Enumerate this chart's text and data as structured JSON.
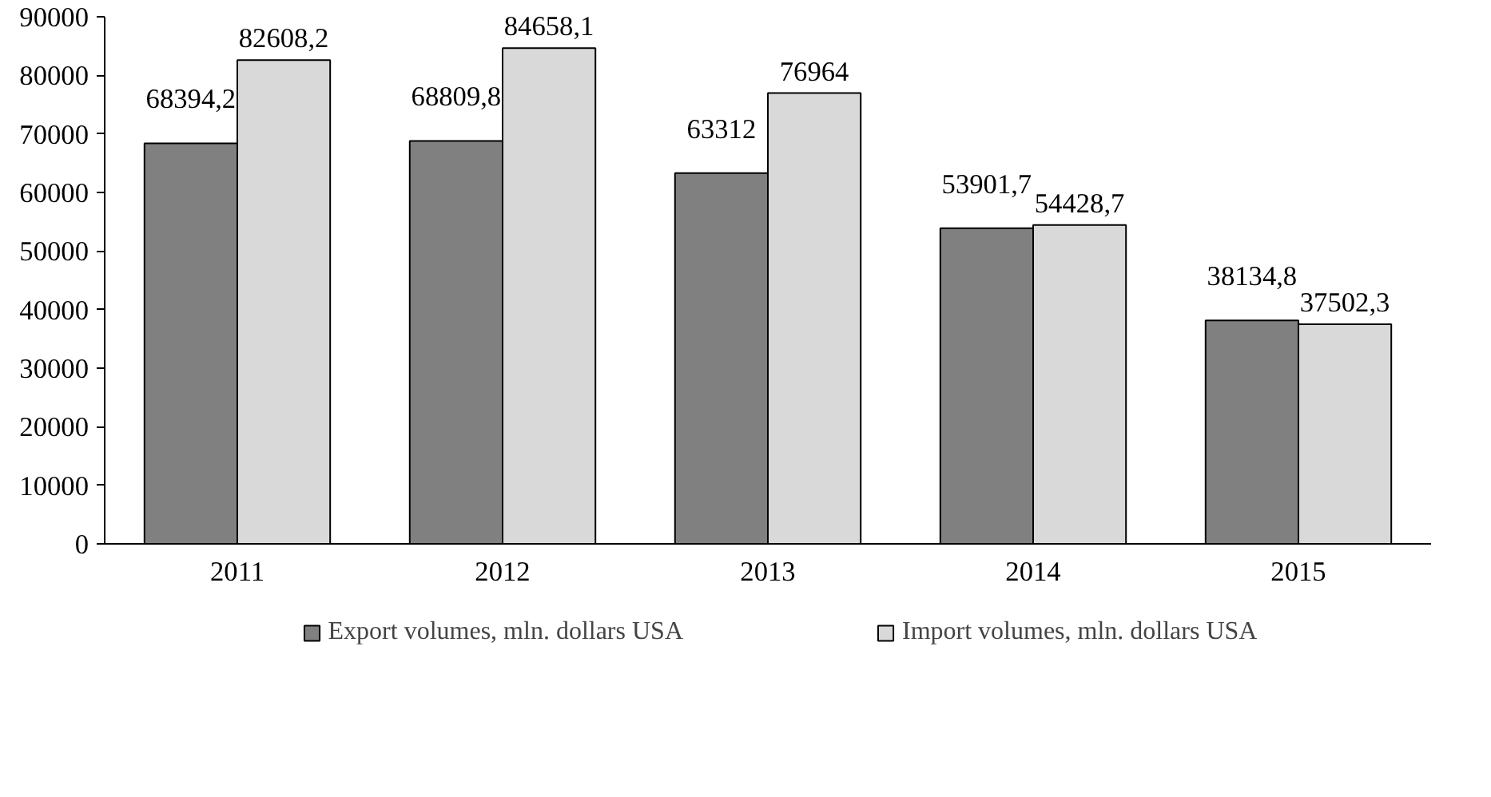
{
  "chart_data": {
    "type": "bar",
    "categories": [
      "2011",
      "2012",
      "2013",
      "2014",
      "2015"
    ],
    "series": [
      {
        "name": "Export volumes, mln. dollars USA",
        "color": "#808080",
        "values": [
          68394.2,
          68809.8,
          63312,
          53901.7,
          38134.8
        ],
        "value_labels": [
          "68394,2",
          "68809,8",
          "63312",
          "53901,7",
          "38134,8"
        ]
      },
      {
        "name": "Import volumes, mln. dollars USA",
        "color": "#d9d9d9",
        "values": [
          82608.2,
          84658.1,
          76964,
          54428.7,
          37502.3
        ],
        "value_labels": [
          "82608,2",
          "84658,1",
          "76964",
          "54428,7",
          "37502,3"
        ]
      }
    ],
    "ylim": [
      0,
      90000
    ],
    "yticks": [
      0,
      10000,
      20000,
      30000,
      40000,
      50000,
      60000,
      70000,
      80000,
      90000
    ],
    "grid": false,
    "legend": "bottom"
  }
}
